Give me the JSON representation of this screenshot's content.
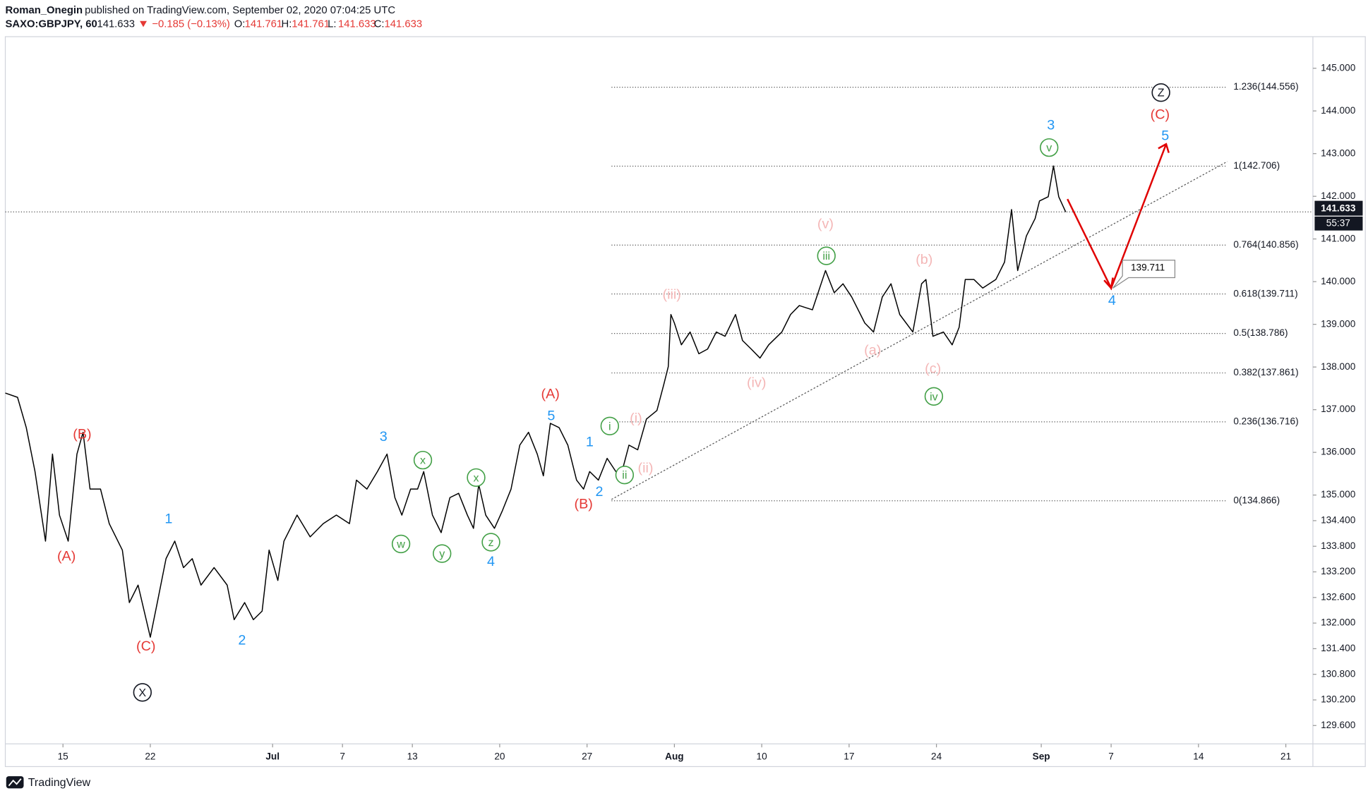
{
  "chart_data": {
    "type": "line",
    "author": "Roman_Onegin",
    "title": "published on TradingView.com, September 02, 2020 07:04:25 UTC",
    "symbol": "SAXO:GBPJPY, 60",
    "last": 141.633,
    "change": "−0.185 (−0.13%)",
    "ohlc": [
      {
        "label": "O:",
        "value": 141.761
      },
      {
        "label": "H:",
        "value": 141.761
      },
      {
        "label": "L:",
        "value": 141.633
      },
      {
        "label": "C:",
        "value": 141.633
      }
    ],
    "countdown": "55:37",
    "target_label": 139.711,
    "footer": "TradingView",
    "color": "#000000",
    "x": [
      -3.3,
      -2.6,
      -2.1,
      -1.6,
      -1.0,
      -0.6,
      -0.2,
      0.3,
      0.8,
      1.15,
      1.55,
      2.15,
      2.65,
      3.4,
      3.8,
      4.3,
      4.65,
      5.0,
      5.4,
      5.9,
      6.4,
      6.9,
      7.4,
      7.9,
      8.65,
      9.4,
      9.8,
      10.4,
      10.9,
      11.4,
      11.8,
      12.3,
      12.65,
      13.4,
      14.15,
      14.9,
      15.65,
      16.4,
      16.8,
      17.4,
      18.0,
      18.55,
      19.0,
      19.4,
      19.9,
      20.3,
      20.65,
      21.15,
      21.65,
      22.15,
      22.65,
      23.15,
      23.5,
      23.8,
      24.2,
      24.7,
      25.15,
      25.65,
      26.15,
      26.65,
      27.15,
      27.5,
      27.9,
      28.4,
      28.9,
      29.4,
      29.8,
      30.15,
      30.65,
      31.15,
      31.65,
      32.0,
      32.4,
      32.9,
      33.4,
      34.0,
      34.4,
      34.65,
      34.8,
      35.0,
      35.4,
      35.9,
      36.4,
      36.9,
      37.4,
      37.9,
      38.5,
      38.9,
      39.4,
      39.9,
      40.4,
      41.15,
      41.65,
      42.15,
      42.9,
      43.65,
      44.15,
      44.65,
      45.15,
      45.9,
      46.4,
      46.9,
      47.4,
      47.9,
      48.65,
      49.15,
      49.4,
      49.8,
      50.4,
      50.9,
      51.3,
      51.65,
      52.15,
      52.65,
      53.4,
      53.9,
      54.3,
      54.65,
      55.15,
      55.65,
      55.9,
      56.4,
      56.7,
      57.0,
      57.4
    ],
    "values": [
      137.39,
      137.29,
      136.58,
      135.55,
      133.92,
      135.96,
      134.53,
      133.92,
      135.96,
      136.47,
      135.14,
      135.14,
      134.33,
      133.71,
      132.48,
      132.89,
      132.28,
      131.67,
      132.48,
      133.51,
      133.92,
      133.3,
      133.51,
      132.89,
      133.3,
      132.89,
      132.08,
      132.48,
      132.08,
      132.28,
      133.71,
      133.0,
      133.92,
      134.53,
      134.02,
      134.33,
      134.53,
      134.33,
      135.35,
      135.14,
      135.55,
      135.96,
      134.94,
      134.53,
      135.14,
      135.14,
      135.55,
      134.53,
      134.12,
      134.94,
      135.04,
      134.53,
      134.22,
      135.25,
      134.53,
      134.22,
      134.63,
      135.14,
      136.17,
      136.47,
      135.96,
      135.45,
      136.68,
      136.58,
      136.17,
      135.35,
      135.14,
      135.55,
      135.35,
      135.86,
      135.55,
      135.55,
      136.17,
      136.06,
      136.78,
      136.98,
      137.6,
      138.01,
      139.23,
      139.03,
      138.52,
      138.82,
      138.31,
      138.42,
      138.82,
      138.72,
      139.23,
      138.62,
      138.42,
      138.21,
      138.52,
      138.82,
      139.23,
      139.44,
      139.34,
      140.26,
      139.74,
      139.95,
      139.64,
      139.03,
      138.82,
      139.64,
      139.95,
      139.23,
      138.82,
      139.95,
      140.05,
      138.72,
      138.82,
      138.52,
      138.93,
      140.05,
      140.05,
      139.85,
      140.05,
      140.46,
      141.69,
      140.26,
      141.07,
      141.48,
      141.89,
      141.99,
      142.71,
      141.99,
      141.633
    ],
    "xlim": [
      -3.3,
      71.55
    ],
    "ylim": [
      129.17,
      145.74
    ],
    "xticks": [
      {
        "value": 0,
        "label": "15"
      },
      {
        "value": 5,
        "label": "22"
      },
      {
        "value": 12,
        "label": "Jul"
      },
      {
        "value": 16,
        "label": "7"
      },
      {
        "value": 20,
        "label": "13"
      },
      {
        "value": 25,
        "label": "20"
      },
      {
        "value": 30,
        "label": "27"
      },
      {
        "value": 35,
        "label": "Aug"
      },
      {
        "value": 40,
        "label": "10"
      },
      {
        "value": 45,
        "label": "17"
      },
      {
        "value": 50,
        "label": "24"
      },
      {
        "value": 56,
        "label": "Sep"
      },
      {
        "value": 60,
        "label": "7"
      },
      {
        "value": 65,
        "label": "14"
      },
      {
        "value": 70,
        "label": "21"
      }
    ],
    "yticks": [
      {
        "value": 145,
        "label": "145.000"
      },
      {
        "value": 144,
        "label": "144.000"
      },
      {
        "value": 143,
        "label": "143.000"
      },
      {
        "value": 142,
        "label": "142.000"
      },
      {
        "value": 141,
        "label": "141.000"
      },
      {
        "value": 140,
        "label": "140.000"
      },
      {
        "value": 139,
        "label": "139.000"
      },
      {
        "value": 138,
        "label": "138.000"
      },
      {
        "value": 137,
        "label": "137.000"
      },
      {
        "value": 136,
        "label": "136.000"
      },
      {
        "value": 135,
        "label": "135.000"
      },
      {
        "value": 134.4,
        "label": "134.400"
      },
      {
        "value": 133.8,
        "label": "133.800"
      },
      {
        "value": 133.2,
        "label": "133.200"
      },
      {
        "value": 132.6,
        "label": "132.600"
      },
      {
        "value": 132,
        "label": "132.000"
      },
      {
        "value": 131.4,
        "label": "131.400"
      },
      {
        "value": 130.8,
        "label": "130.800"
      },
      {
        "value": 130.2,
        "label": "130.200"
      },
      {
        "value": 129.6,
        "label": "129.600"
      }
    ],
    "fib": [
      {
        "label": "0(134.866)",
        "value": 134.866
      },
      {
        "label": "0.236(136.716)",
        "value": 136.716
      },
      {
        "label": "0.382(137.861)",
        "value": 137.861
      },
      {
        "label": "0.5(138.786)",
        "value": 138.786
      },
      {
        "label": "0.618(139.711)",
        "value": 139.711
      },
      {
        "label": "0.764(140.856)",
        "value": 140.856
      },
      {
        "label": "1(142.706)",
        "value": 142.706
      },
      {
        "label": "1.236(144.556)",
        "value": 144.556
      }
    ],
    "annotations": [
      {
        "text": "(A)",
        "color": "#e53935"
      },
      {
        "text": "(B)",
        "color": "#e53935"
      },
      {
        "text": "(C)",
        "color": "#e53935"
      },
      {
        "text": "X",
        "color": "#131722"
      },
      {
        "text": "1",
        "color": "#2196f3"
      },
      {
        "text": "2",
        "color": "#2196f3"
      },
      {
        "text": "3",
        "color": "#2196f3"
      },
      {
        "text": "w",
        "color": "#43a047"
      },
      {
        "text": "x",
        "color": "#43a047"
      },
      {
        "text": "y",
        "color": "#43a047"
      },
      {
        "text": "x",
        "color": "#43a047"
      },
      {
        "text": "z",
        "color": "#43a047"
      },
      {
        "text": "4",
        "color": "#2196f3"
      },
      {
        "text": "(A)",
        "color": "#e53935"
      },
      {
        "text": "5",
        "color": "#2196f3"
      },
      {
        "text": "(B)",
        "color": "#e53935"
      },
      {
        "text": "1",
        "color": "#2196f3"
      },
      {
        "text": "2",
        "color": "#2196f3"
      },
      {
        "text": "i",
        "color": "#43a047"
      },
      {
        "text": "ii",
        "color": "#43a047"
      },
      {
        "text": "(i)",
        "color": "#f4b6b6"
      },
      {
        "text": "(ii)",
        "color": "#f4b6b6"
      },
      {
        "text": "(iii)",
        "color": "#f4b6b6"
      },
      {
        "text": "(iv)",
        "color": "#f4b6b6"
      },
      {
        "text": "(v)",
        "color": "#f4b6b6"
      },
      {
        "text": "iii",
        "color": "#43a047"
      },
      {
        "text": "(a)",
        "color": "#f4b6b6"
      },
      {
        "text": "(b)",
        "color": "#f4b6b6"
      },
      {
        "text": "(c)",
        "color": "#f4b6b6"
      },
      {
        "text": "iv",
        "color": "#43a047"
      },
      {
        "text": "3",
        "color": "#2196f3"
      },
      {
        "text": "v",
        "color": "#43a047"
      },
      {
        "text": "Z",
        "color": "#131722"
      },
      {
        "text": "(C)",
        "color": "#e53935"
      },
      {
        "text": "5",
        "color": "#2196f3"
      },
      {
        "text": "4",
        "color": "#2196f3"
      }
    ]
  }
}
